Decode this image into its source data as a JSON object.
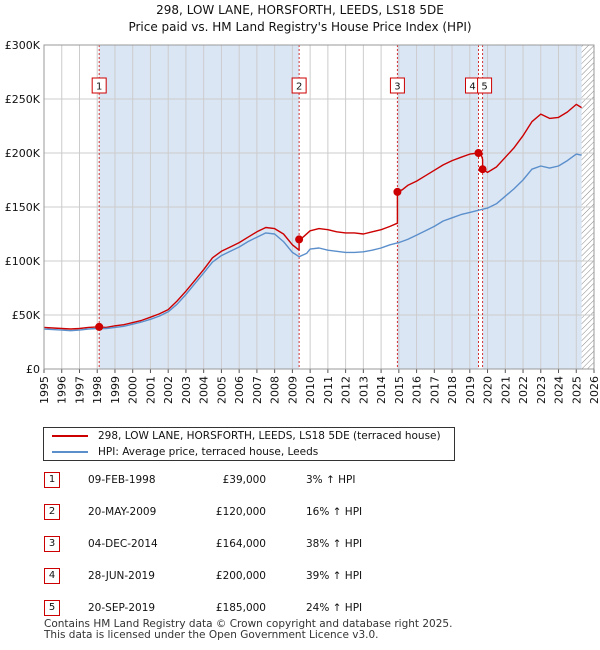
{
  "title": {
    "line1": "298, LOW LANE, HORSFORTH, LEEDS, LS18 5DE",
    "line2": "Price paid vs. HM Land Registry's House Price Index (HPI)"
  },
  "colors": {
    "red": "#cc0000",
    "blue": "#5b8fcb",
    "shade": "#dbe6f5",
    "grid": "#cccccc",
    "hatch": "#888888"
  },
  "chart_data": {
    "type": "line",
    "title": "Price paid vs. HM Land Registry's House Price Index (HPI)",
    "xlabel": "",
    "ylabel": "",
    "xlim": [
      1995,
      2026
    ],
    "ylim": [
      0,
      300000
    ],
    "yticks": [
      {
        "value": 0,
        "label": "£0"
      },
      {
        "value": 50000,
        "label": "£50K"
      },
      {
        "value": 100000,
        "label": "£100K"
      },
      {
        "value": 150000,
        "label": "£150K"
      },
      {
        "value": 200000,
        "label": "£200K"
      },
      {
        "value": 250000,
        "label": "£250K"
      },
      {
        "value": 300000,
        "label": "£300K"
      }
    ],
    "xticks": [
      "1995",
      "1996",
      "1997",
      "1998",
      "1999",
      "2000",
      "2001",
      "2002",
      "2003",
      "2004",
      "2005",
      "2006",
      "2007",
      "2008",
      "2009",
      "2010",
      "2011",
      "2012",
      "2013",
      "2014",
      "2015",
      "2016",
      "2017",
      "2018",
      "2019",
      "2020",
      "2021",
      "2022",
      "2023",
      "2024",
      "2025",
      "2026"
    ],
    "shaded_periods": [
      {
        "from": 1998.11,
        "to": 2009.38
      },
      {
        "from": 2014.92,
        "to": 2019.49
      },
      {
        "from": 2019.72,
        "to": 2025.3
      }
    ],
    "future_hatch_from": 2025.3,
    "series": [
      {
        "name": "298, LOW LANE, HORSFORTH, LEEDS, LS18 5DE (terraced house)",
        "color": "#cc0000",
        "points": [
          [
            1995.0,
            38500
          ],
          [
            1995.5,
            38000
          ],
          [
            1996.0,
            37500
          ],
          [
            1996.5,
            37000
          ],
          [
            1997.0,
            37500
          ],
          [
            1997.5,
            38500
          ],
          [
            1998.0,
            39000
          ],
          [
            1998.11,
            39000
          ],
          [
            1998.5,
            38500
          ],
          [
            1999.0,
            40000
          ],
          [
            1999.5,
            41000
          ],
          [
            2000.0,
            43000
          ],
          [
            2000.5,
            45000
          ],
          [
            2001.0,
            48000
          ],
          [
            2001.5,
            51000
          ],
          [
            2002.0,
            55000
          ],
          [
            2002.5,
            63000
          ],
          [
            2003.0,
            72000
          ],
          [
            2003.5,
            82000
          ],
          [
            2004.0,
            92000
          ],
          [
            2004.5,
            103000
          ],
          [
            2005.0,
            109000
          ],
          [
            2005.5,
            113000
          ],
          [
            2006.0,
            117000
          ],
          [
            2006.5,
            122000
          ],
          [
            2007.0,
            127000
          ],
          [
            2007.5,
            131000
          ],
          [
            2008.0,
            130000
          ],
          [
            2008.5,
            125000
          ],
          [
            2009.0,
            115000
          ],
          [
            2009.38,
            110000
          ],
          [
            2009.38,
            120000
          ],
          [
            2009.6,
            122000
          ],
          [
            2010.0,
            128000
          ],
          [
            2010.5,
            130000
          ],
          [
            2011.0,
            129000
          ],
          [
            2011.5,
            127000
          ],
          [
            2012.0,
            126000
          ],
          [
            2012.5,
            126000
          ],
          [
            2013.0,
            125000
          ],
          [
            2013.5,
            127000
          ],
          [
            2014.0,
            129000
          ],
          [
            2014.5,
            132000
          ],
          [
            2014.92,
            135000
          ],
          [
            2014.92,
            164000
          ],
          [
            2015.2,
            166000
          ],
          [
            2015.5,
            170000
          ],
          [
            2016.0,
            174000
          ],
          [
            2016.5,
            179000
          ],
          [
            2017.0,
            184000
          ],
          [
            2017.5,
            189000
          ],
          [
            2018.0,
            193000
          ],
          [
            2018.5,
            196000
          ],
          [
            2019.0,
            199000
          ],
          [
            2019.49,
            200000
          ],
          [
            2019.6,
            201000
          ],
          [
            2019.72,
            194000
          ],
          [
            2019.72,
            185000
          ],
          [
            2020.0,
            182000
          ],
          [
            2020.5,
            187000
          ],
          [
            2021.0,
            196000
          ],
          [
            2021.5,
            205000
          ],
          [
            2022.0,
            216000
          ],
          [
            2022.5,
            229000
          ],
          [
            2023.0,
            236000
          ],
          [
            2023.5,
            232000
          ],
          [
            2024.0,
            233000
          ],
          [
            2024.5,
            238000
          ],
          [
            2025.0,
            245000
          ],
          [
            2025.3,
            242000
          ]
        ]
      },
      {
        "name": "HPI: Average price, terraced house, Leeds",
        "color": "#5b8fcb",
        "points": [
          [
            1995.0,
            37000
          ],
          [
            1995.5,
            36500
          ],
          [
            1996.0,
            36000
          ],
          [
            1996.5,
            35500
          ],
          [
            1997.0,
            36000
          ],
          [
            1997.5,
            37000
          ],
          [
            1998.0,
            37500
          ],
          [
            1998.5,
            37500
          ],
          [
            1999.0,
            38500
          ],
          [
            1999.5,
            39500
          ],
          [
            2000.0,
            41500
          ],
          [
            2000.5,
            43500
          ],
          [
            2001.0,
            46000
          ],
          [
            2001.5,
            49000
          ],
          [
            2002.0,
            53000
          ],
          [
            2002.5,
            60000
          ],
          [
            2003.0,
            69000
          ],
          [
            2003.5,
            79000
          ],
          [
            2004.0,
            89000
          ],
          [
            2004.5,
            99000
          ],
          [
            2005.0,
            105000
          ],
          [
            2005.5,
            109000
          ],
          [
            2006.0,
            113000
          ],
          [
            2006.5,
            118000
          ],
          [
            2007.0,
            122000
          ],
          [
            2007.5,
            126000
          ],
          [
            2008.0,
            125000
          ],
          [
            2008.5,
            118000
          ],
          [
            2009.0,
            108000
          ],
          [
            2009.38,
            104000
          ],
          [
            2009.8,
            107000
          ],
          [
            2010.0,
            111000
          ],
          [
            2010.5,
            112000
          ],
          [
            2011.0,
            110000
          ],
          [
            2011.5,
            109000
          ],
          [
            2012.0,
            108000
          ],
          [
            2012.5,
            108000
          ],
          [
            2013.0,
            108500
          ],
          [
            2013.5,
            110000
          ],
          [
            2014.0,
            112000
          ],
          [
            2014.5,
            115000
          ],
          [
            2015.0,
            117000
          ],
          [
            2015.5,
            120000
          ],
          [
            2016.0,
            124000
          ],
          [
            2016.5,
            128000
          ],
          [
            2017.0,
            132000
          ],
          [
            2017.5,
            137000
          ],
          [
            2018.0,
            140000
          ],
          [
            2018.5,
            143000
          ],
          [
            2019.0,
            145000
          ],
          [
            2019.5,
            147000
          ],
          [
            2020.0,
            149000
          ],
          [
            2020.5,
            153000
          ],
          [
            2021.0,
            160000
          ],
          [
            2021.5,
            167000
          ],
          [
            2022.0,
            175000
          ],
          [
            2022.5,
            185000
          ],
          [
            2023.0,
            188000
          ],
          [
            2023.5,
            186000
          ],
          [
            2024.0,
            188000
          ],
          [
            2024.5,
            193000
          ],
          [
            2025.0,
            199000
          ],
          [
            2025.3,
            198000
          ]
        ]
      }
    ],
    "transactions": [
      {
        "n": "1",
        "x": 1998.11,
        "y": 39000
      },
      {
        "n": "2",
        "x": 2009.38,
        "y": 120000
      },
      {
        "n": "3",
        "x": 2014.92,
        "y": 164000
      },
      {
        "n": "4",
        "x": 2019.49,
        "y": 200000
      },
      {
        "n": "5",
        "x": 2019.72,
        "y": 185000
      }
    ]
  },
  "legend": {
    "items": [
      {
        "label": "298, LOW LANE, HORSFORTH, LEEDS, LS18 5DE (terraced house)",
        "color": "#cc0000"
      },
      {
        "label": "HPI: Average price, terraced house, Leeds",
        "color": "#5b8fcb"
      }
    ]
  },
  "table": {
    "rows": [
      {
        "num": "1",
        "date": "09-FEB-1998",
        "price": "£39,000",
        "hpi": "3% ↑ HPI"
      },
      {
        "num": "2",
        "date": "20-MAY-2009",
        "price": "£120,000",
        "hpi": "16% ↑ HPI"
      },
      {
        "num": "3",
        "date": "04-DEC-2014",
        "price": "£164,000",
        "hpi": "38% ↑ HPI"
      },
      {
        "num": "4",
        "date": "28-JUN-2019",
        "price": "£200,000",
        "hpi": "39% ↑ HPI"
      },
      {
        "num": "5",
        "date": "20-SEP-2019",
        "price": "£185,000",
        "hpi": "24% ↑ HPI"
      }
    ]
  },
  "footer": {
    "line1": "Contains HM Land Registry data © Crown copyright and database right 2025.",
    "line2": "This data is licensed under the Open Government Licence v3.0."
  }
}
